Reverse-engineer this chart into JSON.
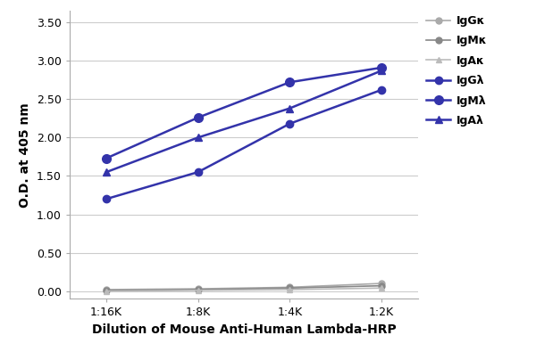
{
  "x_labels": [
    "1:16K",
    "1:8K",
    "1:4K",
    "1:2K"
  ],
  "x_values": [
    0,
    1,
    2,
    3
  ],
  "series": [
    {
      "label": "IgGκ",
      "color": "#aaaaaa",
      "marker": "o",
      "linestyle": "-",
      "linewidth": 1.2,
      "markersize": 5,
      "values": [
        0.02,
        0.03,
        0.05,
        0.1
      ]
    },
    {
      "label": "IgMκ",
      "color": "#888888",
      "marker": "o",
      "linestyle": "-",
      "linewidth": 1.2,
      "markersize": 5,
      "values": [
        0.01,
        0.02,
        0.04,
        0.07
      ]
    },
    {
      "label": "IgAκ",
      "color": "#bbbbbb",
      "marker": "^",
      "linestyle": "-",
      "linewidth": 1.2,
      "markersize": 5,
      "values": [
        0.0,
        0.01,
        0.02,
        0.04
      ]
    },
    {
      "label": "IgGλ",
      "color": "#3333aa",
      "marker": "o",
      "linestyle": "-",
      "linewidth": 1.8,
      "markersize": 6,
      "values": [
        1.2,
        1.55,
        2.18,
        2.62
      ]
    },
    {
      "label": "IgMλ",
      "color": "#3333aa",
      "marker": "o",
      "linestyle": "-",
      "linewidth": 1.8,
      "markersize": 7,
      "values": [
        1.73,
        2.26,
        2.72,
        2.91
      ]
    },
    {
      "label": "IgAλ",
      "color": "#3333aa",
      "marker": "^",
      "linestyle": "-",
      "linewidth": 1.8,
      "markersize": 6,
      "values": [
        1.55,
        2.0,
        2.38,
        2.87
      ]
    }
  ],
  "xlabel": "Dilution of Mouse Anti-Human Lambda-HRP",
  "ylabel": "O.D. at 405 nm",
  "ylim": [
    -0.1,
    3.65
  ],
  "yticks": [
    0.0,
    0.5,
    1.0,
    1.5,
    2.0,
    2.5,
    3.0,
    3.5
  ],
  "ytick_labels": [
    "0.00",
    "0.50",
    "1.00",
    "1.50",
    "2.00",
    "2.50",
    "3.00",
    "3.50"
  ],
  "background_color": "#ffffff",
  "grid_color": "#cccccc",
  "figsize": [
    6.0,
    4.04
  ],
  "dpi": 100
}
